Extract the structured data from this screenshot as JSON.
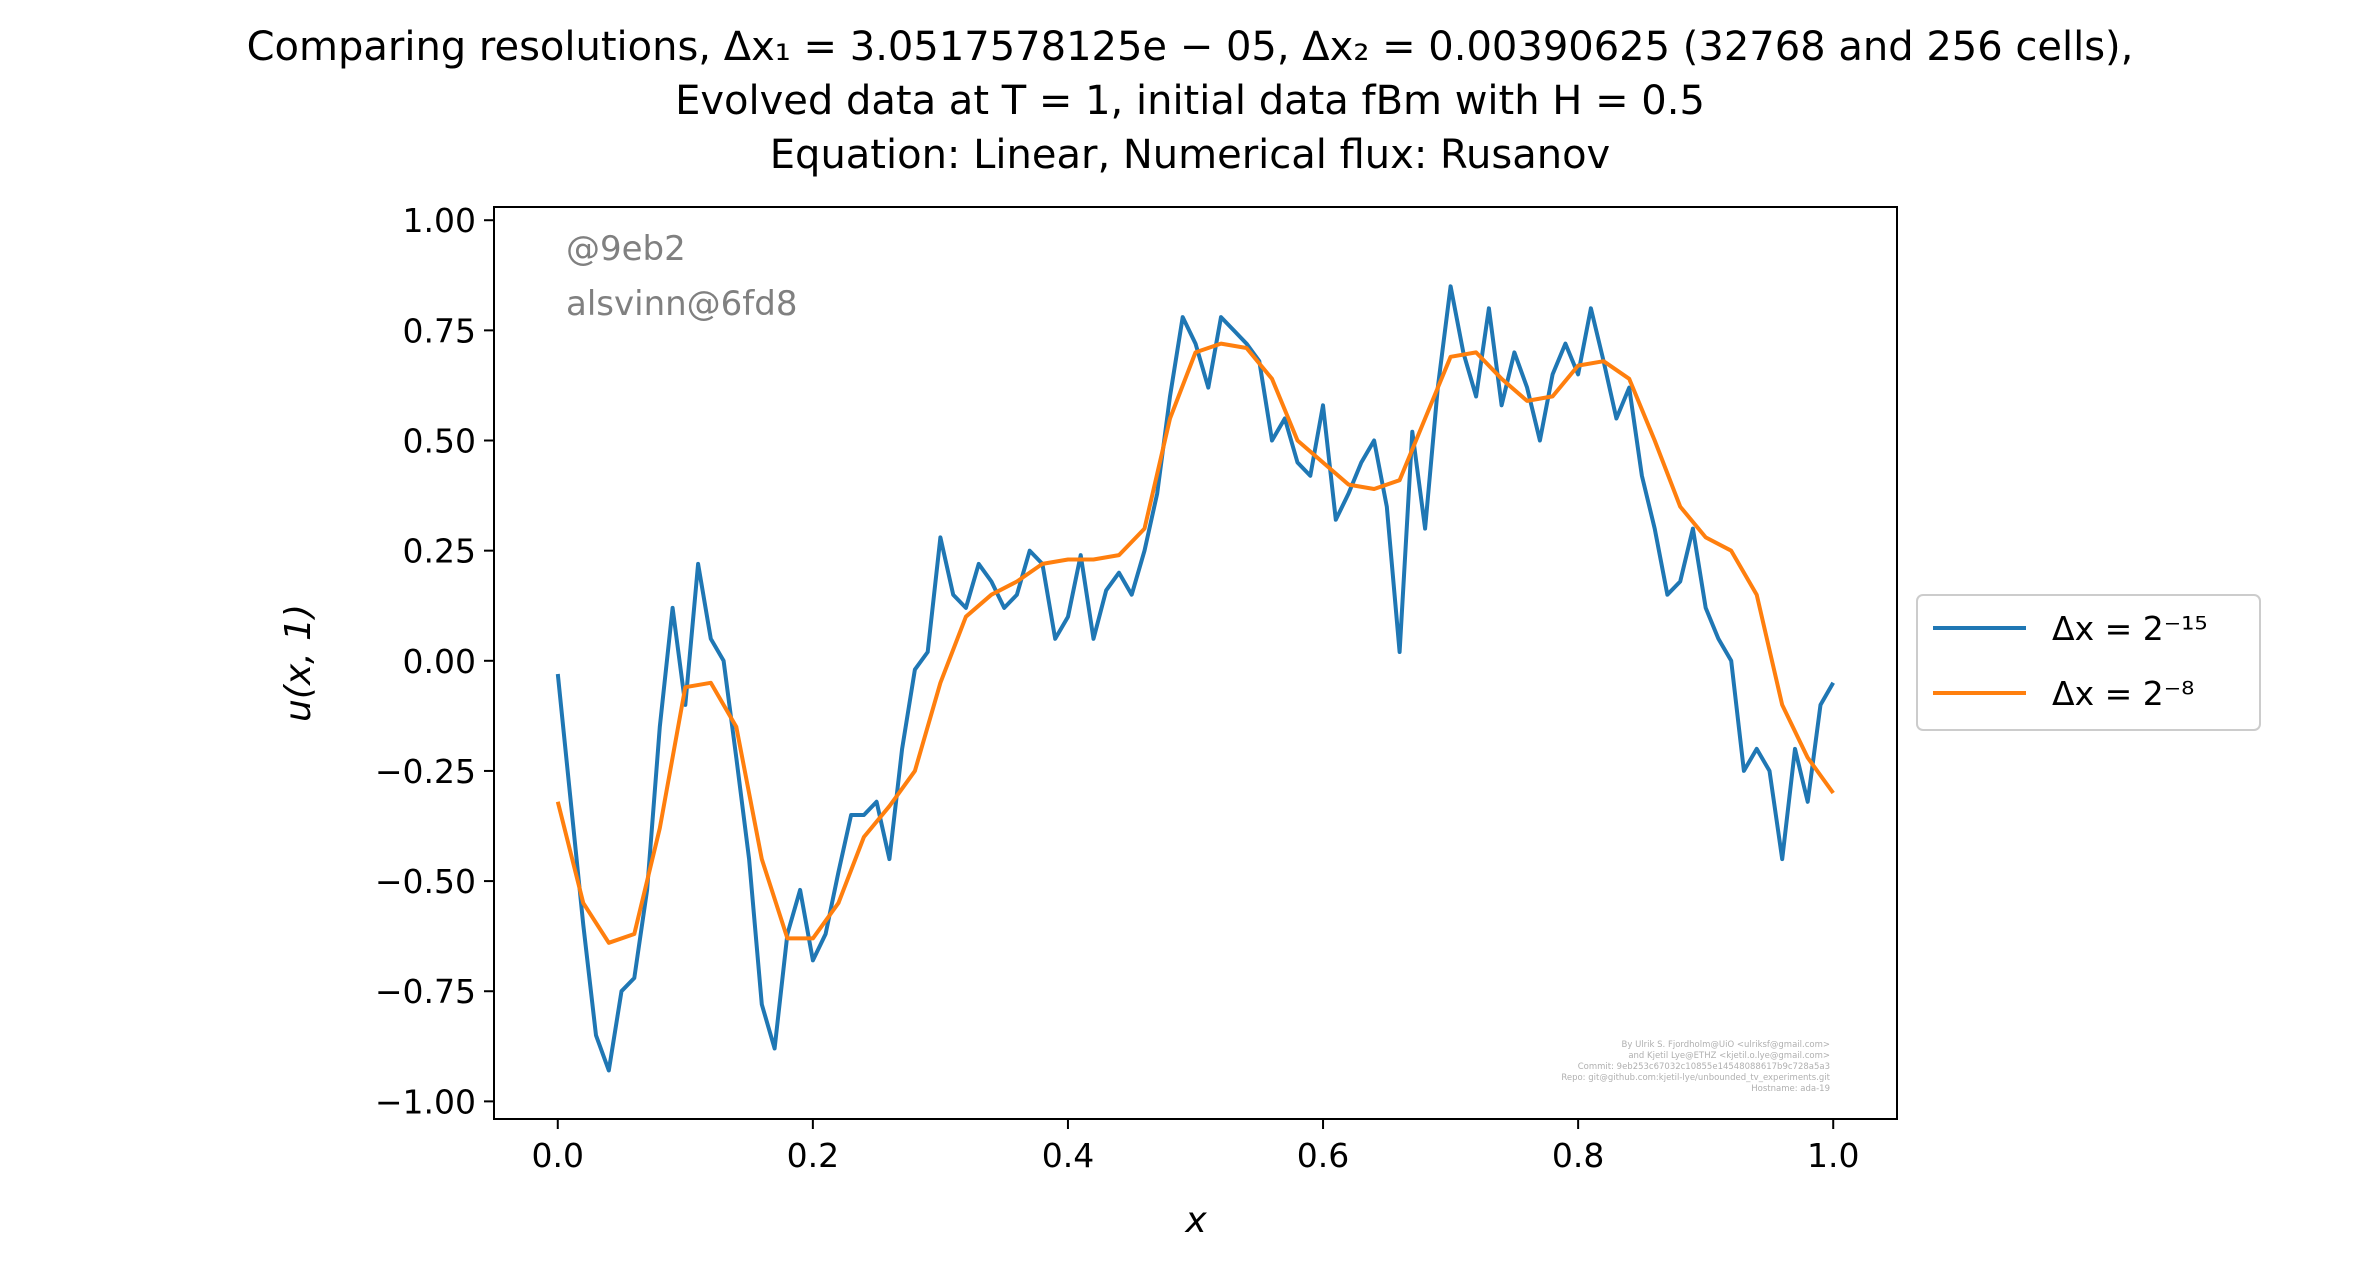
{
  "chart_data": {
    "type": "line",
    "title": [
      "Comparing resolutions, Δx₁ = 3.0517578125e − 05, Δx₂ = 0.00390625 (32768 and 256 cells),",
      "Evolved data at T = 1, initial data fBm with H = 0.5",
      "Equation: Linear, Numerical flux: Rusanov"
    ],
    "xlabel": "x",
    "ylabel": "u(x, 1)",
    "xlim": [
      -0.05,
      1.05
    ],
    "ylim": [
      -1.04,
      1.03
    ],
    "x_ticks": [
      "0.0",
      "0.2",
      "0.4",
      "0.6",
      "0.8",
      "1.0"
    ],
    "y_ticks": [
      "1.00",
      "0.75",
      "0.50",
      "0.25",
      "0.00",
      "−0.25",
      "−0.50",
      "−0.75",
      "−1.00"
    ],
    "grid": false,
    "legend_position": "right, outside plot",
    "series": [
      {
        "name": "Δx = 2⁻¹⁵",
        "color": "#1f77b4",
        "x": [
          0.0,
          0.02,
          0.03,
          0.04,
          0.05,
          0.06,
          0.07,
          0.08,
          0.09,
          0.1,
          0.11,
          0.12,
          0.13,
          0.14,
          0.15,
          0.16,
          0.17,
          0.18,
          0.19,
          0.2,
          0.21,
          0.22,
          0.23,
          0.24,
          0.25,
          0.26,
          0.27,
          0.28,
          0.29,
          0.3,
          0.31,
          0.32,
          0.33,
          0.34,
          0.35,
          0.36,
          0.37,
          0.38,
          0.39,
          0.4,
          0.41,
          0.42,
          0.43,
          0.44,
          0.45,
          0.46,
          0.47,
          0.48,
          0.49,
          0.5,
          0.51,
          0.52,
          0.53,
          0.54,
          0.55,
          0.56,
          0.57,
          0.58,
          0.59,
          0.6,
          0.61,
          0.62,
          0.63,
          0.64,
          0.65,
          0.66,
          0.67,
          0.68,
          0.69,
          0.7,
          0.71,
          0.72,
          0.73,
          0.74,
          0.75,
          0.76,
          0.77,
          0.78,
          0.79,
          0.8,
          0.81,
          0.82,
          0.83,
          0.84,
          0.85,
          0.86,
          0.87,
          0.88,
          0.89,
          0.9,
          0.91,
          0.92,
          0.93,
          0.94,
          0.95,
          0.96,
          0.97,
          0.98,
          0.99,
          1.0
        ],
        "y": [
          -0.03,
          -0.6,
          -0.85,
          -0.93,
          -0.75,
          -0.72,
          -0.52,
          -0.15,
          0.12,
          -0.1,
          0.22,
          0.05,
          0.0,
          -0.22,
          -0.45,
          -0.78,
          -0.88,
          -0.62,
          -0.52,
          -0.68,
          -0.62,
          -0.48,
          -0.35,
          -0.35,
          -0.32,
          -0.45,
          -0.2,
          -0.02,
          0.02,
          0.28,
          0.15,
          0.12,
          0.22,
          0.18,
          0.12,
          0.15,
          0.25,
          0.22,
          0.05,
          0.1,
          0.24,
          0.05,
          0.16,
          0.2,
          0.15,
          0.25,
          0.38,
          0.6,
          0.78,
          0.72,
          0.62,
          0.78,
          0.75,
          0.72,
          0.68,
          0.5,
          0.55,
          0.45,
          0.42,
          0.58,
          0.32,
          0.38,
          0.45,
          0.5,
          0.35,
          0.02,
          0.52,
          0.3,
          0.62,
          0.85,
          0.7,
          0.6,
          0.8,
          0.58,
          0.7,
          0.62,
          0.5,
          0.65,
          0.72,
          0.65,
          0.8,
          0.68,
          0.55,
          0.62,
          0.42,
          0.3,
          0.15,
          0.18,
          0.3,
          0.12,
          0.05,
          0.0,
          -0.25,
          -0.2,
          -0.25,
          -0.45,
          -0.2,
          -0.32,
          -0.1,
          -0.05
        ]
      },
      {
        "name": "Δx = 2⁻⁸",
        "color": "#ff7f0e",
        "x": [
          0.0,
          0.02,
          0.04,
          0.06,
          0.08,
          0.1,
          0.12,
          0.14,
          0.16,
          0.18,
          0.2,
          0.22,
          0.24,
          0.26,
          0.28,
          0.3,
          0.32,
          0.34,
          0.36,
          0.38,
          0.4,
          0.42,
          0.44,
          0.46,
          0.48,
          0.5,
          0.52,
          0.54,
          0.56,
          0.58,
          0.6,
          0.62,
          0.64,
          0.66,
          0.68,
          0.7,
          0.72,
          0.74,
          0.76,
          0.78,
          0.8,
          0.82,
          0.84,
          0.86,
          0.88,
          0.9,
          0.92,
          0.94,
          0.96,
          0.98,
          1.0
        ],
        "y": [
          -0.32,
          -0.55,
          -0.64,
          -0.62,
          -0.38,
          -0.06,
          -0.05,
          -0.15,
          -0.45,
          -0.63,
          -0.63,
          -0.55,
          -0.4,
          -0.33,
          -0.25,
          -0.05,
          0.1,
          0.15,
          0.18,
          0.22,
          0.23,
          0.23,
          0.24,
          0.3,
          0.55,
          0.7,
          0.72,
          0.71,
          0.64,
          0.5,
          0.45,
          0.4,
          0.39,
          0.41,
          0.55,
          0.69,
          0.7,
          0.64,
          0.59,
          0.6,
          0.67,
          0.68,
          0.64,
          0.5,
          0.35,
          0.28,
          0.25,
          0.15,
          -0.1,
          -0.22,
          -0.3
        ]
      }
    ]
  },
  "annotations": {
    "stamp_line1": "@9eb2",
    "stamp_line2": "alsvinn@6fd8",
    "credits": [
      "By Ulrik S. Fjordholm@UiO <ulriksf@gmail.com>",
      "and Kjetil Lye@ETHZ <kjetil.o.lye@gmail.com>",
      "Commit: 9eb253c67032c10855e14548088617b9c728a5a3",
      "Repo: git@github.com:kjetil-lye/unbounded_tv_experiments.git",
      "Hostname: ada-19"
    ]
  }
}
